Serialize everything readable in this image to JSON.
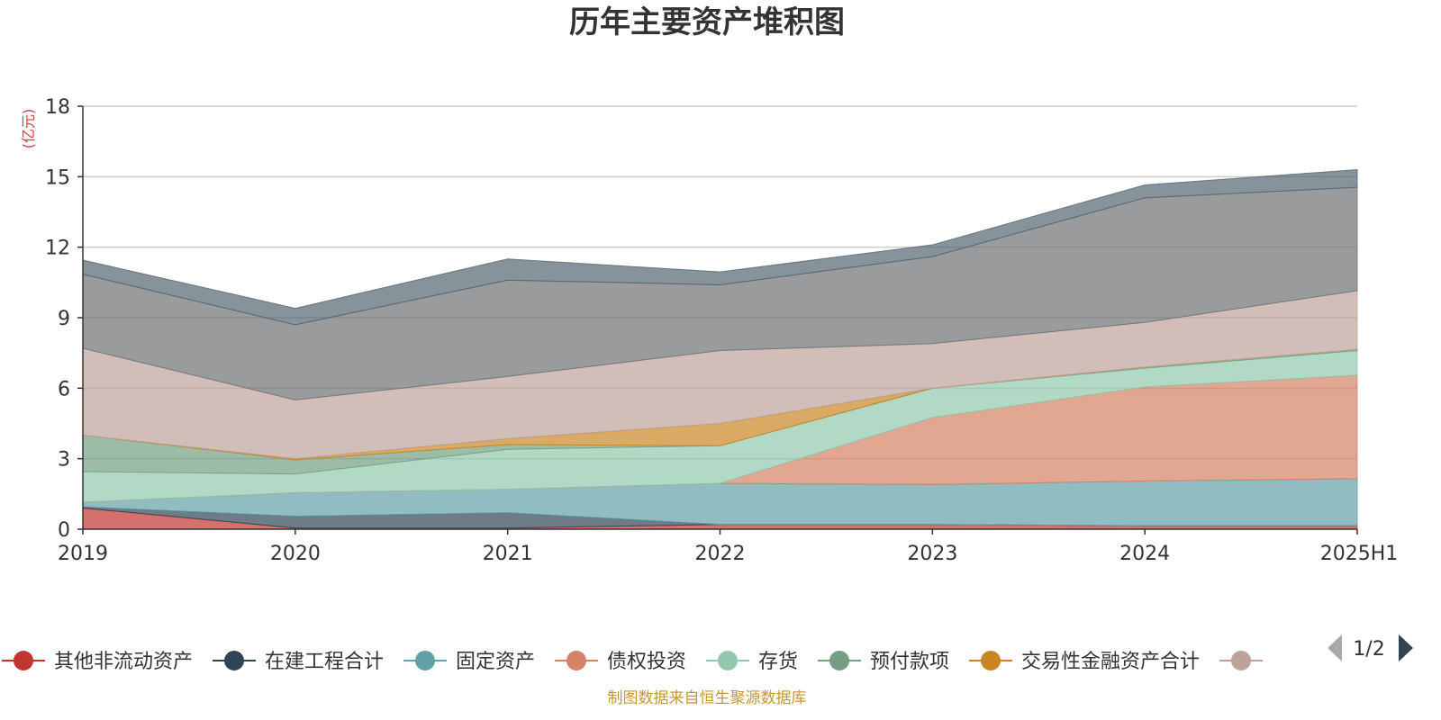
{
  "chart_data": {
    "type": "area",
    "title": "历年主要资产堆积图",
    "unit_label": "(亿元)",
    "x": [
      "2019",
      "2020",
      "2021",
      "2022",
      "2023",
      "2024",
      "2025H1"
    ],
    "y_ticks": [
      "0",
      "3",
      "6",
      "9",
      "12",
      "15",
      "18"
    ],
    "ylim": [
      0,
      18
    ],
    "grid": true,
    "stacked": true,
    "series": [
      {
        "name": "其他非流动资产",
        "color": "#c23531",
        "values": [
          0.9,
          0.05,
          0.05,
          0.2,
          0.2,
          0.15,
          0.15
        ]
      },
      {
        "name": "在建工程合计",
        "color": "#2f4554",
        "values": [
          0.05,
          0.5,
          0.65,
          0.0,
          0.0,
          0.0,
          0.0
        ]
      },
      {
        "name": "固定资产",
        "color": "#61a0a8",
        "values": [
          0.2,
          1.0,
          1.0,
          1.75,
          1.7,
          1.9,
          2.0
        ]
      },
      {
        "name": "债权投资",
        "color": "#d48265",
        "values": [
          0.0,
          0.0,
          0.0,
          0.0,
          2.85,
          4.0,
          4.4
        ]
      },
      {
        "name": "存货",
        "color": "#91c7ae",
        "values": [
          1.3,
          0.8,
          1.7,
          1.6,
          1.25,
          0.8,
          1.05
        ]
      },
      {
        "name": "预付款项",
        "color": "#749f83",
        "values": [
          1.55,
          0.6,
          0.2,
          0.0,
          0.0,
          0.05,
          0.05
        ]
      },
      {
        "name": "交易性金融资产合计",
        "color": "#ca8622",
        "values": [
          0.0,
          0.05,
          0.25,
          0.95,
          0.0,
          0.0,
          0.0
        ]
      },
      {
        "name": "",
        "color": "#bda29a",
        "values": [
          3.7,
          2.5,
          2.65,
          3.1,
          1.9,
          1.9,
          2.5
        ]
      },
      {
        "name": "",
        "color": "#6e7074",
        "values": [
          3.15,
          3.2,
          4.1,
          2.8,
          3.7,
          5.3,
          4.4
        ]
      },
      {
        "name": "",
        "color": "#546570",
        "values": [
          0.6,
          0.7,
          0.9,
          0.55,
          0.5,
          0.55,
          0.75
        ]
      }
    ],
    "legend": {
      "placement": "bottom",
      "page": "1/2",
      "visible_items": [
        "其他非流动资产",
        "在建工程合计",
        "固定资产",
        "债权投资",
        "存货",
        "预付款项",
        "交易性金融资产合计"
      ]
    },
    "source": "制图数据来自恒生聚源数据库"
  }
}
